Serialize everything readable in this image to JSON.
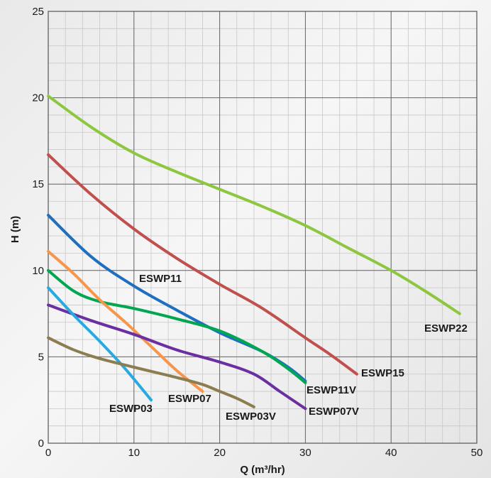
{
  "chart_data": {
    "type": "line",
    "xlabel": "Q (m³/hr)",
    "ylabel": "H (m)",
    "xlim": [
      0,
      50
    ],
    "ylim": [
      0,
      25
    ],
    "xticks": [
      0,
      10,
      20,
      30,
      40,
      50
    ],
    "yticks": [
      0,
      5,
      10,
      15,
      20,
      25
    ],
    "grid": "major every 10 (x) / 5 (y), minor every 2 (x) / 1 (y)",
    "legend": "none (series labeled inline)",
    "series": [
      {
        "name": "ESWP22",
        "color": "#8dc63f",
        "points": [
          [
            0,
            20.1
          ],
          [
            5,
            18.3
          ],
          [
            10,
            16.8
          ],
          [
            15,
            15.7
          ],
          [
            20,
            14.7
          ],
          [
            25,
            13.7
          ],
          [
            30,
            12.6
          ],
          [
            35,
            11.3
          ],
          [
            40,
            10.0
          ],
          [
            44,
            8.8
          ],
          [
            48,
            7.5
          ]
        ]
      },
      {
        "name": "ESWP15",
        "color": "#c0504d",
        "points": [
          [
            0,
            16.7
          ],
          [
            5,
            14.4
          ],
          [
            10,
            12.4
          ],
          [
            15,
            10.7
          ],
          [
            20,
            9.2
          ],
          [
            25,
            7.8
          ],
          [
            30,
            6.1
          ],
          [
            33,
            5.1
          ],
          [
            36,
            4.0
          ]
        ]
      },
      {
        "name": "ESWP11",
        "color": "#1e6fbf",
        "points": [
          [
            0,
            13.2
          ],
          [
            5,
            10.8
          ],
          [
            10,
            9.1
          ],
          [
            15,
            7.7
          ],
          [
            20,
            6.4
          ],
          [
            25,
            5.3
          ],
          [
            28,
            4.4
          ],
          [
            30,
            3.6
          ]
        ]
      },
      {
        "name": "ESWP11V",
        "color": "#00a650",
        "points": [
          [
            0,
            10.0
          ],
          [
            3,
            8.8
          ],
          [
            6,
            8.2
          ],
          [
            10,
            7.8
          ],
          [
            15,
            7.2
          ],
          [
            20,
            6.5
          ],
          [
            25,
            5.3
          ],
          [
            28,
            4.3
          ],
          [
            30,
            3.5
          ]
        ]
      },
      {
        "name": "ESWP07",
        "color": "#f7954a",
        "points": [
          [
            0,
            11.1
          ],
          [
            3,
            9.8
          ],
          [
            6,
            8.3
          ],
          [
            9,
            7.0
          ],
          [
            12,
            5.6
          ],
          [
            15,
            4.2
          ],
          [
            18,
            3.0
          ]
        ]
      },
      {
        "name": "ESWP07V",
        "color": "#6a2fa0",
        "points": [
          [
            0,
            8.0
          ],
          [
            5,
            7.1
          ],
          [
            10,
            6.3
          ],
          [
            15,
            5.4
          ],
          [
            20,
            4.7
          ],
          [
            24,
            4.0
          ],
          [
            27,
            3.0
          ],
          [
            30,
            2.0
          ]
        ]
      },
      {
        "name": "ESWP03",
        "color": "#27aae1",
        "points": [
          [
            0,
            9.0
          ],
          [
            3,
            7.4
          ],
          [
            6,
            5.9
          ],
          [
            9,
            4.3
          ],
          [
            12,
            2.5
          ]
        ]
      },
      {
        "name": "ESWP03V",
        "color": "#8b7d4f",
        "points": [
          [
            0,
            6.1
          ],
          [
            3,
            5.4
          ],
          [
            6,
            4.9
          ],
          [
            10,
            4.4
          ],
          [
            15,
            3.8
          ],
          [
            18,
            3.4
          ],
          [
            20,
            3.0
          ],
          [
            22,
            2.6
          ],
          [
            24,
            2.1
          ]
        ]
      }
    ],
    "annotations": [
      "ESWP22",
      "ESWP15",
      "ESWP11",
      "ESWP11V",
      "ESWP07",
      "ESWP07V",
      "ESWP03",
      "ESWP03V"
    ]
  }
}
